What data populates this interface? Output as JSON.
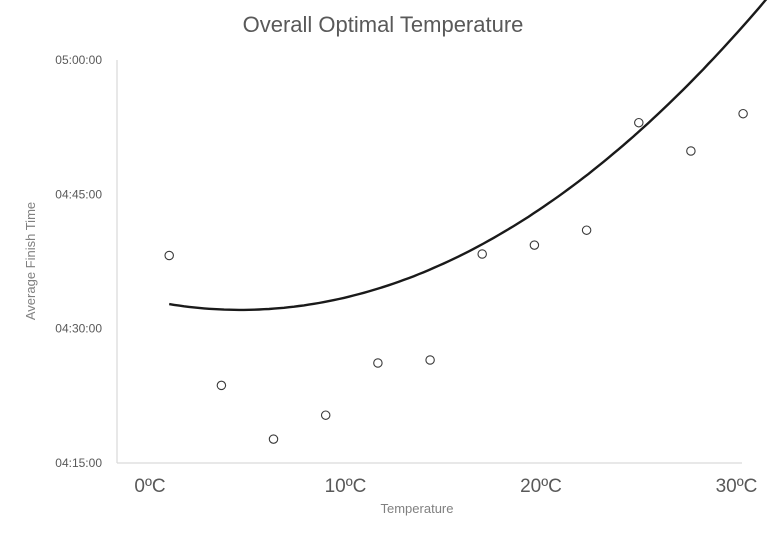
{
  "chart_data": {
    "type": "scatter",
    "title": "Overall Optimal Temperature",
    "xlabel": "Temperature",
    "ylabel": "Average Finish Time",
    "xlim": [
      0,
      30
    ],
    "ylim_seconds": [
      15300,
      18000
    ],
    "x_ticks": [
      {
        "value": 0,
        "label": "0ºC"
      },
      {
        "value": 10,
        "label": "10ºC"
      },
      {
        "value": 20,
        "label": "20ºC"
      },
      {
        "value": 30,
        "label": "30ºC"
      }
    ],
    "y_ticks": [
      {
        "value": 15300,
        "label": "04:15:00"
      },
      {
        "value": 16200,
        "label": "04:30:00"
      },
      {
        "value": 17100,
        "label": "04:45:00"
      },
      {
        "value": 18000,
        "label": "05:00:00"
      }
    ],
    "points": [
      {
        "x": 2.5,
        "y": "04:38:10"
      },
      {
        "x": 5.0,
        "y": "04:23:40"
      },
      {
        "x": 7.5,
        "y": "04:17:40"
      },
      {
        "x": 10.0,
        "y": "04:20:20"
      },
      {
        "x": 12.5,
        "y": "04:26:10"
      },
      {
        "x": 15.0,
        "y": "04:26:30"
      },
      {
        "x": 17.5,
        "y": "04:38:20"
      },
      {
        "x": 20.0,
        "y": "04:39:20"
      },
      {
        "x": 22.5,
        "y": "04:41:00"
      },
      {
        "x": 25.0,
        "y": "04:53:00"
      },
      {
        "x": 27.5,
        "y": "04:49:50"
      },
      {
        "x": 30.0,
        "y": "04:54:00"
      }
    ],
    "trendline": {
      "type": "polynomial",
      "x_range": [
        2.5,
        31.2
      ],
      "coefficients_seconds": [
        16441,
        -38.85,
        3.28
      ]
    },
    "grid": false,
    "legend": "none"
  }
}
